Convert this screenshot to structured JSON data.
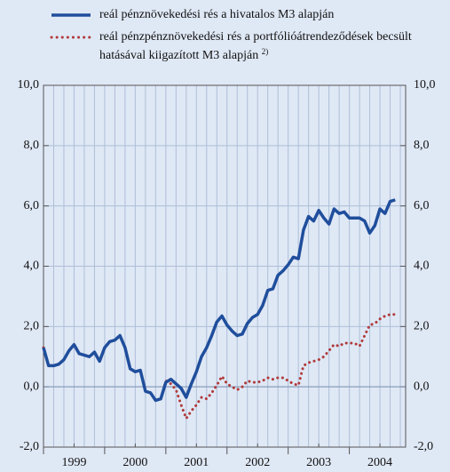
{
  "chart_data": {
    "type": "line",
    "x": [
      1999.0,
      1999.083,
      1999.167,
      1999.25,
      1999.333,
      1999.417,
      1999.5,
      1999.583,
      1999.667,
      1999.75,
      1999.833,
      1999.917,
      2000.0,
      2000.083,
      2000.167,
      2000.25,
      2000.333,
      2000.417,
      2000.5,
      2000.583,
      2000.667,
      2000.75,
      2000.833,
      2000.917,
      2001.0,
      2001.083,
      2001.167,
      2001.25,
      2001.333,
      2001.417,
      2001.5,
      2001.583,
      2001.667,
      2001.75,
      2001.833,
      2001.917,
      2002.0,
      2002.083,
      2002.167,
      2002.25,
      2002.333,
      2002.417,
      2002.5,
      2002.583,
      2002.667,
      2002.75,
      2002.833,
      2002.917,
      2003.0,
      2003.083,
      2003.167,
      2003.25,
      2003.333,
      2003.417,
      2003.5,
      2003.583,
      2003.667,
      2003.75,
      2003.833,
      2003.917,
      2004.0,
      2004.083,
      2004.167,
      2004.25,
      2004.333,
      2004.417,
      2004.5,
      2004.583,
      2004.667,
      2004.75
    ],
    "series": [
      {
        "name": "reál pénznövekedési rés a hivatalos M3 alapján",
        "color": "#1f4e9c",
        "style": "solid",
        "values": [
          1.3,
          0.7,
          0.7,
          0.75,
          0.9,
          1.2,
          1.4,
          1.1,
          1.05,
          1.0,
          1.15,
          0.85,
          1.3,
          1.5,
          1.55,
          1.7,
          1.3,
          0.6,
          0.5,
          0.55,
          -0.15,
          -0.2,
          -0.45,
          -0.4,
          0.15,
          0.25,
          0.1,
          -0.05,
          -0.35,
          0.1,
          0.5,
          1.0,
          1.3,
          1.7,
          2.15,
          2.35,
          2.05,
          1.85,
          1.7,
          1.75,
          2.1,
          2.3,
          2.4,
          2.7,
          3.2,
          3.25,
          3.7,
          3.85,
          4.05,
          4.3,
          4.25,
          5.2,
          5.65,
          5.5,
          5.85,
          5.6,
          5.4,
          5.9,
          5.75,
          5.8,
          5.6,
          5.6,
          5.6,
          5.5,
          5.1,
          5.35,
          5.9,
          5.75,
          6.15,
          6.2
        ]
      },
      {
        "name": "reál pénzpénznövekedési rés a portfólióátrendeződések becsült hatásával kiigazított M3 alapján",
        "footnote_mark": "2)",
        "color": "#b03a3a",
        "style": "dotted",
        "values": [
          1.3,
          0.7,
          0.7,
          0.75,
          0.9,
          1.2,
          1.4,
          1.1,
          1.05,
          1.0,
          1.15,
          0.85,
          1.3,
          1.5,
          1.55,
          1.7,
          1.3,
          0.6,
          0.5,
          0.55,
          -0.15,
          -0.2,
          -0.45,
          -0.4,
          0.2,
          0.1,
          -0.1,
          -0.6,
          -1.05,
          -0.8,
          -0.6,
          -0.35,
          -0.4,
          -0.2,
          0.05,
          0.35,
          0.1,
          0.0,
          -0.1,
          0.0,
          0.2,
          0.15,
          0.15,
          0.2,
          0.3,
          0.25,
          0.3,
          0.3,
          0.2,
          0.1,
          0.05,
          0.7,
          0.8,
          0.85,
          0.9,
          1.0,
          1.2,
          1.4,
          1.35,
          1.45,
          1.45,
          1.45,
          1.35,
          1.7,
          2.05,
          2.1,
          2.25,
          2.35,
          2.4,
          2.4
        ]
      }
    ],
    "xlim": [
      1999,
      2004.92
    ],
    "xticks": [
      {
        "value": 1999.5,
        "label": "1999"
      },
      {
        "value": 2000.5,
        "label": "2000"
      },
      {
        "value": 2001.5,
        "label": "2001"
      },
      {
        "value": 2002.5,
        "label": "2002"
      },
      {
        "value": 2003.5,
        "label": "2003"
      },
      {
        "value": 2004.5,
        "label": "2004"
      }
    ],
    "ylim": [
      -2,
      10
    ],
    "yticks": [
      {
        "value": -2,
        "label": "-2,0"
      },
      {
        "value": 0,
        "label": "0,0"
      },
      {
        "value": 2,
        "label": "2,0"
      },
      {
        "value": 4,
        "label": "4,0"
      },
      {
        "value": 6,
        "label": "6,0"
      },
      {
        "value": 8,
        "label": "8,0"
      },
      {
        "value": 10,
        "label": "10,0"
      }
    ],
    "grid": true
  }
}
